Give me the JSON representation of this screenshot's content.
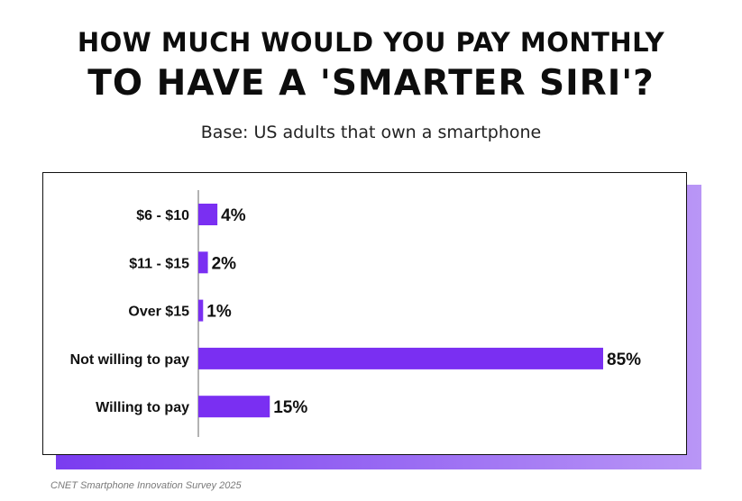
{
  "title_line1": "HOW MUCH WOULD YOU PAY MONTHLY",
  "title_line2": "TO HAVE A 'SMARTER SIRI'?",
  "subtitle": "Base: US adults that own a smartphone",
  "source": "CNET  Smartphone Innovation Survey 2025",
  "colors": {
    "bar": "#7a2ff2",
    "shadow_start": "#7a3cf0",
    "shadow_end": "#b996f6",
    "text": "#111111"
  },
  "chart_data": {
    "type": "bar",
    "orientation": "horizontal",
    "title": "HOW MUCH WOULD YOU PAY MONTHLY TO HAVE A 'SMARTER SIRI'?",
    "subtitle": "Base: US adults that own a smartphone",
    "categories": [
      "$6 - $10",
      "$11 - $15",
      "Over $15",
      "Not willing to pay",
      "Willing to pay"
    ],
    "values": [
      4,
      2,
      1,
      85,
      15
    ],
    "value_labels": [
      "4%",
      "2%",
      "1%",
      "85%",
      "15%"
    ],
    "unit": "%",
    "xlim": [
      0,
      85
    ],
    "grid": false,
    "legend": "none"
  }
}
